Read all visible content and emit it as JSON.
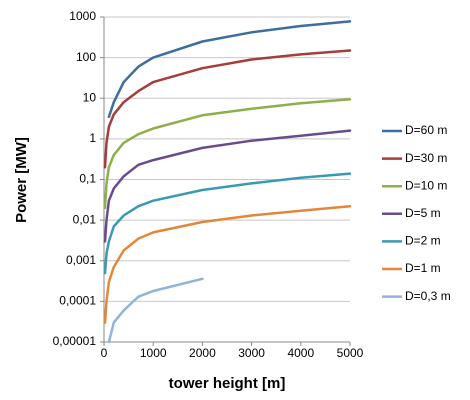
{
  "chart_data": {
    "type": "line",
    "x_label": "tower height [m]",
    "y_label": "Power [MW]",
    "x": [
      20,
      50,
      100,
      200,
      400,
      700,
      1000,
      2000,
      3000,
      4000,
      5000
    ],
    "series": [
      {
        "name": "D=60 m",
        "color": "#3f6d9e",
        "values": [
          null,
          null,
          3.5,
          8,
          25,
          60,
          100,
          250,
          420,
          600,
          780
        ]
      },
      {
        "name": "D=30 m",
        "color": "#a53d3a",
        "values": [
          0.2,
          0.8,
          2,
          4,
          8,
          15,
          25,
          55,
          90,
          120,
          150
        ]
      },
      {
        "name": "D=10 m",
        "color": "#8db04a",
        "values": [
          0.02,
          0.08,
          0.2,
          0.4,
          0.8,
          1.3,
          1.8,
          3.8,
          5.5,
          7.5,
          9.5
        ]
      },
      {
        "name": "D=5 m",
        "color": "#6a4c8e",
        "values": [
          0.003,
          0.01,
          0.03,
          0.06,
          0.12,
          0.23,
          0.3,
          0.6,
          0.9,
          1.2,
          1.6
        ]
      },
      {
        "name": "D=2 m",
        "color": "#3a9ab4",
        "values": [
          0.0005,
          0.0015,
          0.003,
          0.007,
          0.013,
          0.022,
          0.03,
          0.055,
          0.08,
          0.11,
          0.14
        ]
      },
      {
        "name": "D=1 m",
        "color": "#e5873b",
        "values": [
          3e-05,
          0.0001,
          0.0003,
          0.0007,
          0.0018,
          0.0035,
          0.005,
          0.009,
          0.013,
          0.017,
          0.022
        ]
      },
      {
        "name": "D=0,3 m",
        "color": "#90b4da",
        "values": [
          null,
          null,
          1e-05,
          3e-05,
          6e-05,
          0.00013,
          0.00018,
          0.00036,
          null,
          null,
          null
        ]
      }
    ],
    "xlim": [
      0,
      5000
    ],
    "xticks": [
      0,
      1000,
      2000,
      3000,
      4000,
      5000
    ],
    "ylim": [
      1e-05,
      1000
    ],
    "yticks": [
      {
        "value": 1e-05,
        "label": "0,00001"
      },
      {
        "value": 0.0001,
        "label": "0,0001"
      },
      {
        "value": 0.001,
        "label": "0,001"
      },
      {
        "value": 0.01,
        "label": "0,01"
      },
      {
        "value": 0.1,
        "label": "0,1"
      },
      1,
      10,
      100,
      1000
    ],
    "y_log": true,
    "grid": true,
    "legend": "right"
  }
}
